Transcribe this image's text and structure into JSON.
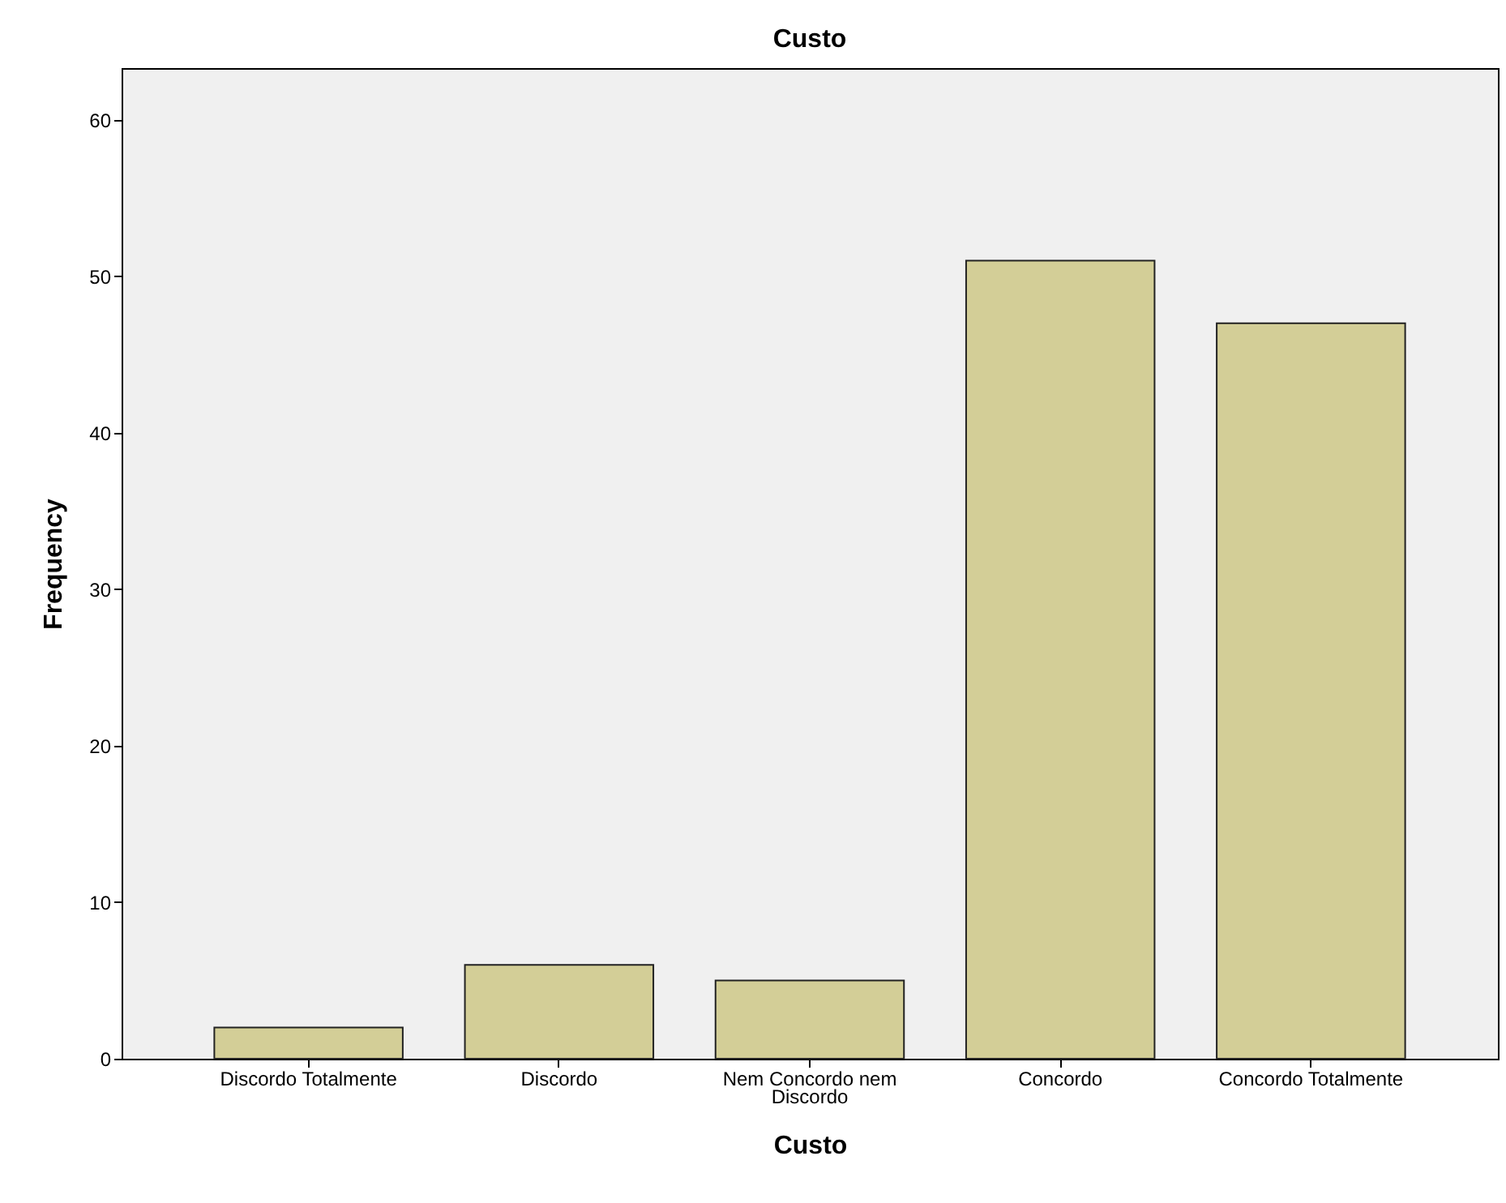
{
  "chart_data": {
    "type": "bar",
    "title": "Custo",
    "xlabel": "Custo",
    "ylabel": "Frequency",
    "categories": [
      "Discordo Totalmente",
      "Discordo",
      "Nem Concordo nem Discordo",
      "Concordo",
      "Concordo Totalmente"
    ],
    "values": [
      2,
      6,
      5,
      51,
      47
    ],
    "color": "#d3ce97",
    "ylim": [
      0,
      63.3
    ],
    "yticks": [
      0,
      10,
      20,
      30,
      40,
      50,
      60
    ],
    "grid": false
  }
}
